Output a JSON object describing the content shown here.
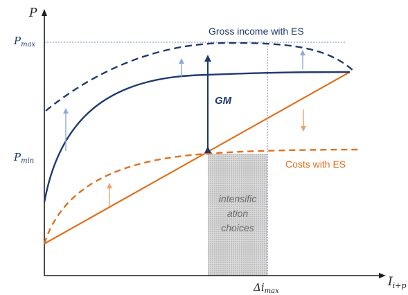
{
  "axes": {
    "y_label": "P",
    "x_label_main": "I",
    "x_label_sub": "i+p",
    "x_tick_main": "Δi",
    "x_tick_sub": "max"
  },
  "y_ticks": {
    "pmax_main": "P",
    "pmax_sub": "max",
    "pmin_main": "P",
    "pmin_sub": "min"
  },
  "labels": {
    "gross_income": "Gross income with ES",
    "costs": "Costs with ES",
    "gm": "GM",
    "box_line1": "intensific",
    "box_line2": "ation",
    "box_line3": "choices"
  },
  "colors": {
    "blue": "#1e3a6e",
    "orange": "#e0701e",
    "arrow_blue_light": "#8fa8d8",
    "arrow_orange_light": "#f0a070",
    "box_fill": "#c8c8c8"
  }
}
